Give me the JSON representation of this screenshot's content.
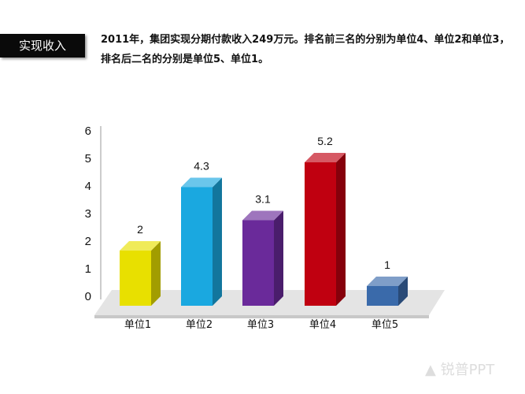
{
  "header": {
    "tag": "实现收入",
    "line1": "2011年，集团实现分期付款收入249万元。排名前三名的分别为单位4、单位2和单位3，",
    "line2": "排名后二名的分别是单位5、单位1。"
  },
  "watermark": "锐普PPT",
  "chart_data": {
    "type": "bar",
    "style": "3d",
    "categories": [
      "单位1",
      "单位2",
      "单位3",
      "单位4",
      "单位5"
    ],
    "values": [
      2,
      4.3,
      3.1,
      5.2,
      1
    ],
    "data_labels": [
      "2",
      "4.3",
      "3.1",
      "5.2",
      "1"
    ],
    "colors": [
      "#e8e000",
      "#1aa8e0",
      "#6a2a9a",
      "#c00010",
      "#3a6aaa"
    ],
    "ylim": [
      0,
      6
    ],
    "yticks": [
      "0",
      "1",
      "2",
      "3",
      "4",
      "5",
      "6"
    ],
    "grid": false,
    "legend": "none"
  }
}
